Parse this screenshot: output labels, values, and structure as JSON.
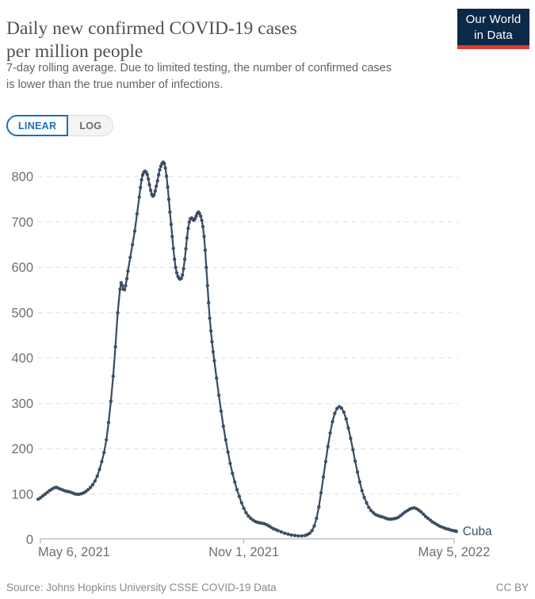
{
  "header": {
    "title_lines": [
      "Daily new confirmed COVID-19 cases",
      "per million people"
    ],
    "subtitle_lines": [
      "7-day rolling average. Due to limited testing, the number of confirmed cases",
      "is lower than the true number of infections."
    ],
    "logo": {
      "line1": "Our World",
      "line2": "in Data",
      "bg_color": "#0c2947",
      "accent_color": "#dc3a2e"
    }
  },
  "controls": {
    "buttons": [
      {
        "label": "LINEAR",
        "active": true
      },
      {
        "label": "LOG",
        "active": false
      }
    ],
    "active_color": "#1d6fb5"
  },
  "chart_data": {
    "type": "line",
    "title": "Daily new confirmed COVID-19 cases per million people",
    "subtitle": "7-day rolling average. Due to limited testing, the number of confirmed cases is lower than the true number of infections.",
    "series_label": "Cuba",
    "line_color": "#3C4E63",
    "xlabel": "",
    "ylabel": "",
    "ylim": [
      0,
      860
    ],
    "y_ticks": [
      0,
      100,
      200,
      300,
      400,
      500,
      600,
      700,
      800
    ],
    "x_ticks": [
      "May 6, 2021",
      "Nov 1, 2021",
      "May 5, 2022"
    ],
    "x_tick_dates": [
      "2021-05-06",
      "2021-11-01",
      "2022-05-05"
    ],
    "xlim_dates": [
      "2021-05-04",
      "2022-05-07"
    ],
    "grid": "horizontal-dashed",
    "legend_position": "end-of-line",
    "points": [
      [
        "2021-05-04",
        89
      ],
      [
        "2021-05-06",
        92
      ],
      [
        "2021-05-08",
        96
      ],
      [
        "2021-05-10",
        100
      ],
      [
        "2021-05-12",
        104
      ],
      [
        "2021-05-14",
        108
      ],
      [
        "2021-05-16",
        111
      ],
      [
        "2021-05-18",
        114
      ],
      [
        "2021-05-20",
        115
      ],
      [
        "2021-05-22",
        113
      ],
      [
        "2021-05-24",
        111
      ],
      [
        "2021-05-26",
        109
      ],
      [
        "2021-05-28",
        107
      ],
      [
        "2021-05-30",
        106
      ],
      [
        "2021-06-01",
        105
      ],
      [
        "2021-06-03",
        103
      ],
      [
        "2021-06-05",
        101
      ],
      [
        "2021-06-07",
        100
      ],
      [
        "2021-06-09",
        100
      ],
      [
        "2021-06-11",
        101
      ],
      [
        "2021-06-13",
        103
      ],
      [
        "2021-06-15",
        106
      ],
      [
        "2021-06-17",
        110
      ],
      [
        "2021-06-19",
        115
      ],
      [
        "2021-06-21",
        121
      ],
      [
        "2021-06-23",
        129
      ],
      [
        "2021-06-25",
        140
      ],
      [
        "2021-06-27",
        155
      ],
      [
        "2021-06-29",
        172
      ],
      [
        "2021-07-01",
        192
      ],
      [
        "2021-07-03",
        220
      ],
      [
        "2021-07-05",
        258
      ],
      [
        "2021-07-07",
        305
      ],
      [
        "2021-07-09",
        360
      ],
      [
        "2021-07-11",
        425
      ],
      [
        "2021-07-13",
        500
      ],
      [
        "2021-07-15",
        552
      ],
      [
        "2021-07-16",
        566
      ],
      [
        "2021-07-17",
        560
      ],
      [
        "2021-07-18",
        552
      ],
      [
        "2021-07-19",
        551
      ],
      [
        "2021-07-20",
        560
      ],
      [
        "2021-07-21",
        575
      ],
      [
        "2021-07-22",
        592
      ],
      [
        "2021-07-24",
        622
      ],
      [
        "2021-07-26",
        650
      ],
      [
        "2021-07-28",
        680
      ],
      [
        "2021-07-30",
        718
      ],
      [
        "2021-08-01",
        755
      ],
      [
        "2021-08-02",
        776
      ],
      [
        "2021-08-03",
        793
      ],
      [
        "2021-08-04",
        804
      ],
      [
        "2021-08-05",
        810
      ],
      [
        "2021-08-06",
        812
      ],
      [
        "2021-08-07",
        810
      ],
      [
        "2021-08-08",
        805
      ],
      [
        "2021-08-09",
        795
      ],
      [
        "2021-08-10",
        782
      ],
      [
        "2021-08-11",
        770
      ],
      [
        "2021-08-12",
        761
      ],
      [
        "2021-08-13",
        757
      ],
      [
        "2021-08-14",
        760
      ],
      [
        "2021-08-15",
        768
      ],
      [
        "2021-08-16",
        779
      ],
      [
        "2021-08-17",
        791
      ],
      [
        "2021-08-18",
        804
      ],
      [
        "2021-08-19",
        815
      ],
      [
        "2021-08-20",
        823
      ],
      [
        "2021-08-21",
        829
      ],
      [
        "2021-08-22",
        832
      ],
      [
        "2021-08-23",
        829
      ],
      [
        "2021-08-24",
        819
      ],
      [
        "2021-08-25",
        801
      ],
      [
        "2021-08-26",
        777
      ],
      [
        "2021-08-27",
        750
      ],
      [
        "2021-08-28",
        722
      ],
      [
        "2021-08-29",
        695
      ],
      [
        "2021-08-30",
        668
      ],
      [
        "2021-08-31",
        642
      ],
      [
        "2021-09-01",
        618
      ],
      [
        "2021-09-02",
        600
      ],
      [
        "2021-09-03",
        588
      ],
      [
        "2021-09-04",
        580
      ],
      [
        "2021-09-05",
        576
      ],
      [
        "2021-09-06",
        574
      ],
      [
        "2021-09-07",
        576
      ],
      [
        "2021-09-08",
        583
      ],
      [
        "2021-09-09",
        597
      ],
      [
        "2021-09-10",
        618
      ],
      [
        "2021-09-11",
        641
      ],
      [
        "2021-09-12",
        665
      ],
      [
        "2021-09-13",
        686
      ],
      [
        "2021-09-14",
        700
      ],
      [
        "2021-09-15",
        707
      ],
      [
        "2021-09-16",
        709
      ],
      [
        "2021-09-17",
        706
      ],
      [
        "2021-09-18",
        704
      ],
      [
        "2021-09-19",
        707
      ],
      [
        "2021-09-20",
        713
      ],
      [
        "2021-09-21",
        719
      ],
      [
        "2021-09-22",
        722
      ],
      [
        "2021-09-23",
        719
      ],
      [
        "2021-09-24",
        713
      ],
      [
        "2021-09-25",
        704
      ],
      [
        "2021-09-26",
        690
      ],
      [
        "2021-09-27",
        668
      ],
      [
        "2021-09-28",
        638
      ],
      [
        "2021-09-29",
        600
      ],
      [
        "2021-09-30",
        560
      ],
      [
        "2021-10-01",
        522
      ],
      [
        "2021-10-02",
        488
      ],
      [
        "2021-10-03",
        460
      ],
      [
        "2021-10-04",
        436
      ],
      [
        "2021-10-05",
        414
      ],
      [
        "2021-10-06",
        394
      ],
      [
        "2021-10-08",
        356
      ],
      [
        "2021-10-10",
        318
      ],
      [
        "2021-10-12",
        283
      ],
      [
        "2021-10-14",
        250
      ],
      [
        "2021-10-16",
        220
      ],
      [
        "2021-10-18",
        193
      ],
      [
        "2021-10-20",
        168
      ],
      [
        "2021-10-22",
        146
      ],
      [
        "2021-10-24",
        127
      ],
      [
        "2021-10-26",
        110
      ],
      [
        "2021-10-28",
        95
      ],
      [
        "2021-10-30",
        81
      ],
      [
        "2021-11-01",
        69
      ],
      [
        "2021-11-03",
        59
      ],
      [
        "2021-11-05",
        52
      ],
      [
        "2021-11-07",
        47
      ],
      [
        "2021-11-09",
        43
      ],
      [
        "2021-11-11",
        40
      ],
      [
        "2021-11-13",
        38
      ],
      [
        "2021-11-15",
        37
      ],
      [
        "2021-11-17",
        36
      ],
      [
        "2021-11-19",
        35
      ],
      [
        "2021-11-21",
        33
      ],
      [
        "2021-11-23",
        30
      ],
      [
        "2021-11-25",
        27
      ],
      [
        "2021-11-27",
        24
      ],
      [
        "2021-11-29",
        22
      ],
      [
        "2021-12-01",
        20
      ],
      [
        "2021-12-04",
        17
      ],
      [
        "2021-12-07",
        14
      ],
      [
        "2021-12-10",
        12
      ],
      [
        "2021-12-13",
        10
      ],
      [
        "2021-12-16",
        9
      ],
      [
        "2021-12-19",
        8
      ],
      [
        "2021-12-22",
        8
      ],
      [
        "2021-12-25",
        9
      ],
      [
        "2021-12-27",
        11
      ],
      [
        "2021-12-29",
        14
      ],
      [
        "2021-12-31",
        20
      ],
      [
        "2022-01-02",
        30
      ],
      [
        "2022-01-04",
        47
      ],
      [
        "2022-01-06",
        72
      ],
      [
        "2022-01-08",
        103
      ],
      [
        "2022-01-10",
        138
      ],
      [
        "2022-01-12",
        172
      ],
      [
        "2022-01-14",
        205
      ],
      [
        "2022-01-16",
        235
      ],
      [
        "2022-01-18",
        260
      ],
      [
        "2022-01-20",
        278
      ],
      [
        "2022-01-22",
        289
      ],
      [
        "2022-01-24",
        293
      ],
      [
        "2022-01-26",
        290
      ],
      [
        "2022-01-28",
        281
      ],
      [
        "2022-01-30",
        266
      ],
      [
        "2022-02-01",
        246
      ],
      [
        "2022-02-03",
        223
      ],
      [
        "2022-02-05",
        198
      ],
      [
        "2022-02-07",
        173
      ],
      [
        "2022-02-09",
        149
      ],
      [
        "2022-02-11",
        127
      ],
      [
        "2022-02-13",
        108
      ],
      [
        "2022-02-15",
        93
      ],
      [
        "2022-02-17",
        81
      ],
      [
        "2022-02-19",
        71
      ],
      [
        "2022-02-21",
        64
      ],
      [
        "2022-02-23",
        59
      ],
      [
        "2022-02-25",
        55
      ],
      [
        "2022-02-27",
        53
      ],
      [
        "2022-03-01",
        51
      ],
      [
        "2022-03-03",
        50
      ],
      [
        "2022-03-05",
        48
      ],
      [
        "2022-03-07",
        46
      ],
      [
        "2022-03-09",
        45
      ],
      [
        "2022-03-11",
        45
      ],
      [
        "2022-03-13",
        46
      ],
      [
        "2022-03-15",
        47
      ],
      [
        "2022-03-17",
        49
      ],
      [
        "2022-03-19",
        53
      ],
      [
        "2022-03-21",
        57
      ],
      [
        "2022-03-23",
        61
      ],
      [
        "2022-03-25",
        64
      ],
      [
        "2022-03-27",
        67
      ],
      [
        "2022-03-29",
        69
      ],
      [
        "2022-03-31",
        70
      ],
      [
        "2022-04-02",
        68
      ],
      [
        "2022-04-04",
        65
      ],
      [
        "2022-04-06",
        61
      ],
      [
        "2022-04-08",
        56
      ],
      [
        "2022-04-10",
        51
      ],
      [
        "2022-04-12",
        47
      ],
      [
        "2022-04-14",
        43
      ],
      [
        "2022-04-16",
        39
      ],
      [
        "2022-04-18",
        36
      ],
      [
        "2022-04-20",
        33
      ],
      [
        "2022-04-22",
        30
      ],
      [
        "2022-04-24",
        28
      ],
      [
        "2022-04-26",
        26
      ],
      [
        "2022-04-28",
        24
      ],
      [
        "2022-04-30",
        23
      ],
      [
        "2022-05-02",
        21
      ],
      [
        "2022-05-04",
        20
      ],
      [
        "2022-05-06",
        19
      ],
      [
        "2022-05-07",
        18
      ]
    ]
  },
  "footer": {
    "source": "Source: Johns Hopkins University CSSE COVID-19 Data",
    "license": "CC BY"
  }
}
